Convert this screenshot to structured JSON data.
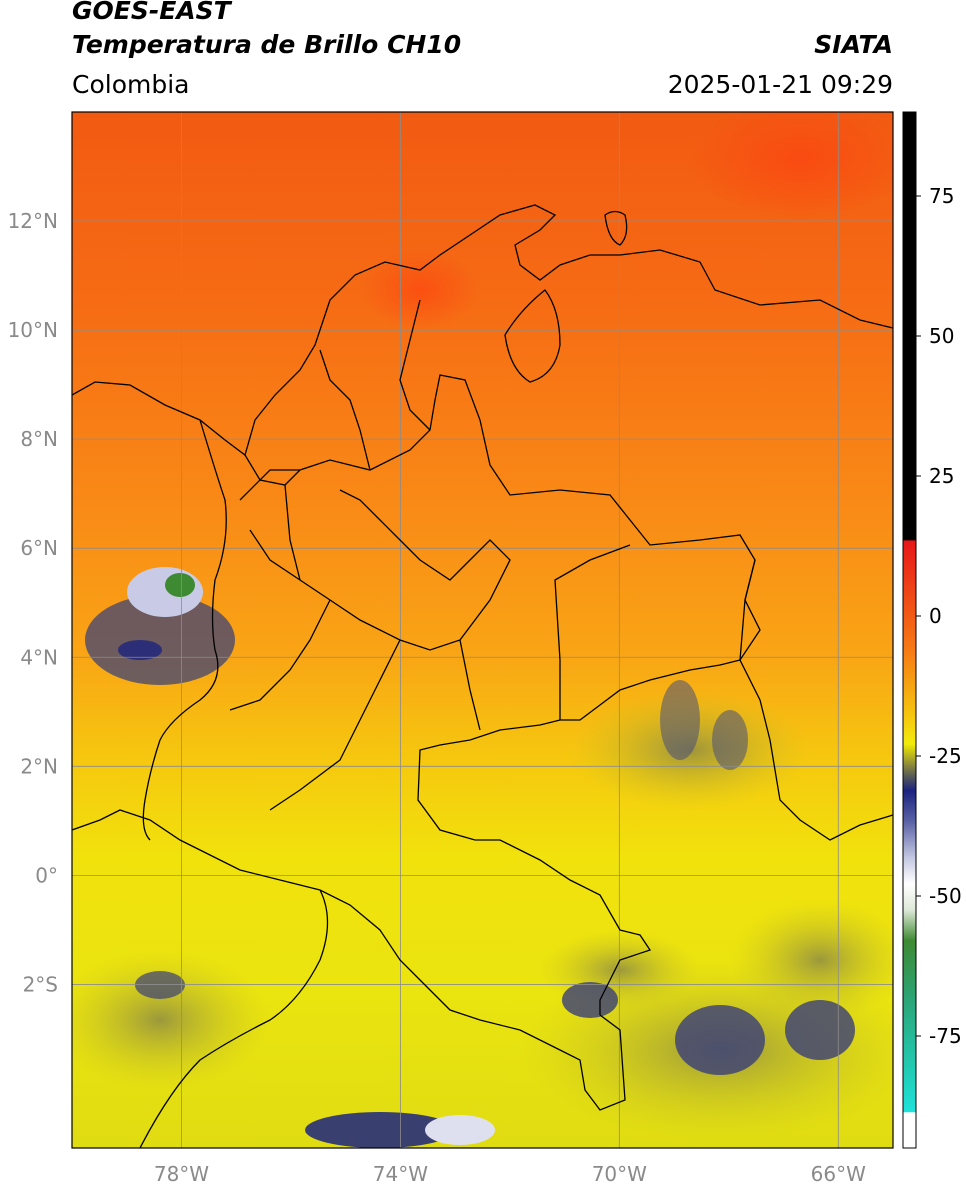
{
  "header": {
    "satellite": "GOES-EAST",
    "product": "Temperatura de Brillo CH10",
    "organization": "SIATA",
    "region": "Colombia",
    "datetime": "2025-01-21 09:29"
  },
  "map": {
    "lon_range": [
      -80,
      -65
    ],
    "lat_range": [
      -5,
      14
    ],
    "lon_ticks": [
      {
        "value": -78,
        "label": "78°W"
      },
      {
        "value": -74,
        "label": "74°W"
      },
      {
        "value": -70,
        "label": "70°W"
      },
      {
        "value": -66,
        "label": "66°W"
      }
    ],
    "lat_ticks": [
      {
        "value": 12,
        "label": "12°N"
      },
      {
        "value": 10,
        "label": "10°N"
      },
      {
        "value": 8,
        "label": "8°N"
      },
      {
        "value": 6,
        "label": "6°N"
      },
      {
        "value": 4,
        "label": "4°N"
      },
      {
        "value": 2,
        "label": "2°N"
      },
      {
        "value": 0,
        "label": "0°"
      },
      {
        "value": -2,
        "label": "2°S"
      }
    ],
    "gridlines": true
  },
  "colorbar": {
    "range": [
      -95,
      90
    ],
    "ticks": [
      75,
      50,
      25,
      0,
      -25,
      -50,
      -75
    ],
    "tick_labels": [
      "75",
      "50",
      "25",
      "0",
      "-25",
      "-50",
      "-75"
    ],
    "colors": {
      "warm_top": "#000000",
      "red": "#e8171a",
      "orange": "#f77b14",
      "yellow": "#f2ec0c",
      "olive": "#8d8a3a",
      "navy": "#1b237f",
      "white": "#ffffff",
      "green": "#3e8a33",
      "cyan": "#1de2da"
    }
  }
}
